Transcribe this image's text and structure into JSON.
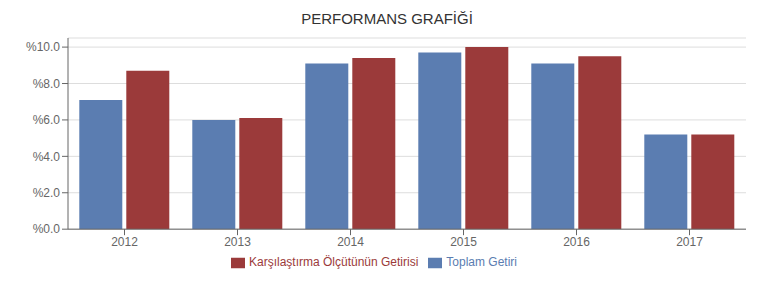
{
  "chart_data": {
    "type": "bar",
    "title": "PERFORMANS GRAFİĞİ",
    "categories": [
      "2012",
      "2013",
      "2014",
      "2015",
      "2016",
      "2017"
    ],
    "series": [
      {
        "name": "Toplam Getiri",
        "color": "#5B7DB1",
        "values": [
          7.1,
          6.0,
          9.1,
          9.7,
          9.1,
          5.2
        ]
      },
      {
        "name": "Karşılaştırma Ölçütünün Getirisi",
        "color": "#9B3A3A",
        "values": [
          8.7,
          6.1,
          9.4,
          10.0,
          9.5,
          5.2
        ]
      }
    ],
    "ylim": [
      0,
      10.5
    ],
    "yticks": [
      {
        "value": 0.0,
        "label": "%0.0"
      },
      {
        "value": 2.0,
        "label": "%2.0"
      },
      {
        "value": 4.0,
        "label": "%4.0"
      },
      {
        "value": 6.0,
        "label": "%6.0"
      },
      {
        "value": 8.0,
        "label": "%8.0"
      },
      {
        "value": 10.0,
        "label": "%10.0"
      }
    ],
    "grid": true,
    "legend": "bottom"
  }
}
